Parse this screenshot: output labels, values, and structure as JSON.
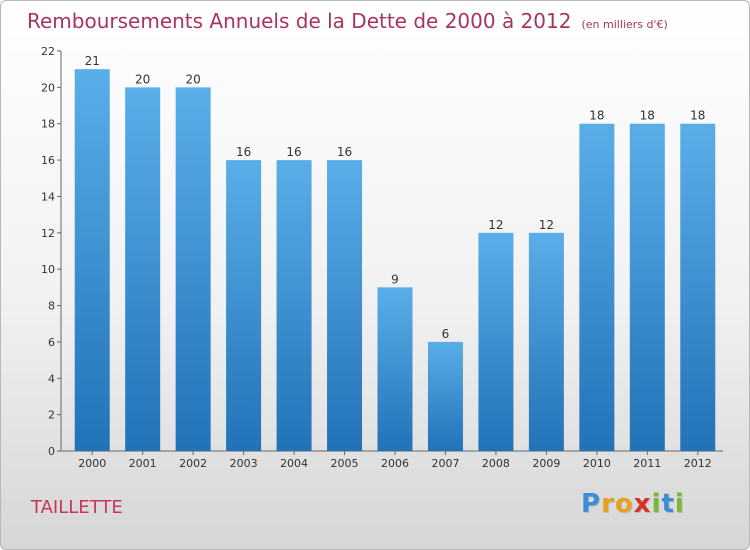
{
  "chart_data": {
    "type": "bar",
    "title": "Remboursements Annuels de la Dette de 2000 à 2012",
    "unit": "(en milliers d'€)",
    "categories": [
      "2000",
      "2001",
      "2002",
      "2003",
      "2004",
      "2005",
      "2006",
      "2007",
      "2008",
      "2009",
      "2010",
      "2011",
      "2012"
    ],
    "values": [
      21,
      20,
      20,
      16,
      16,
      16,
      9,
      6,
      12,
      12,
      18,
      18,
      18
    ],
    "ylim": [
      0,
      22
    ],
    "yticks": [
      0,
      2,
      4,
      6,
      8,
      10,
      12,
      14,
      16,
      18,
      20,
      22
    ],
    "xlabel": "",
    "ylabel": "",
    "grid": false,
    "bar_color": "#3b8fd6"
  },
  "commune": "TAILLETTE",
  "brand": {
    "letters": [
      "P",
      "r",
      "o",
      "x",
      "i",
      "t",
      "i"
    ],
    "colors": [
      "#3a8dd8",
      "#e8a020",
      "#e8a020",
      "#d8302a",
      "#7ab83a",
      "#3a8dd8",
      "#7ab83a"
    ]
  }
}
